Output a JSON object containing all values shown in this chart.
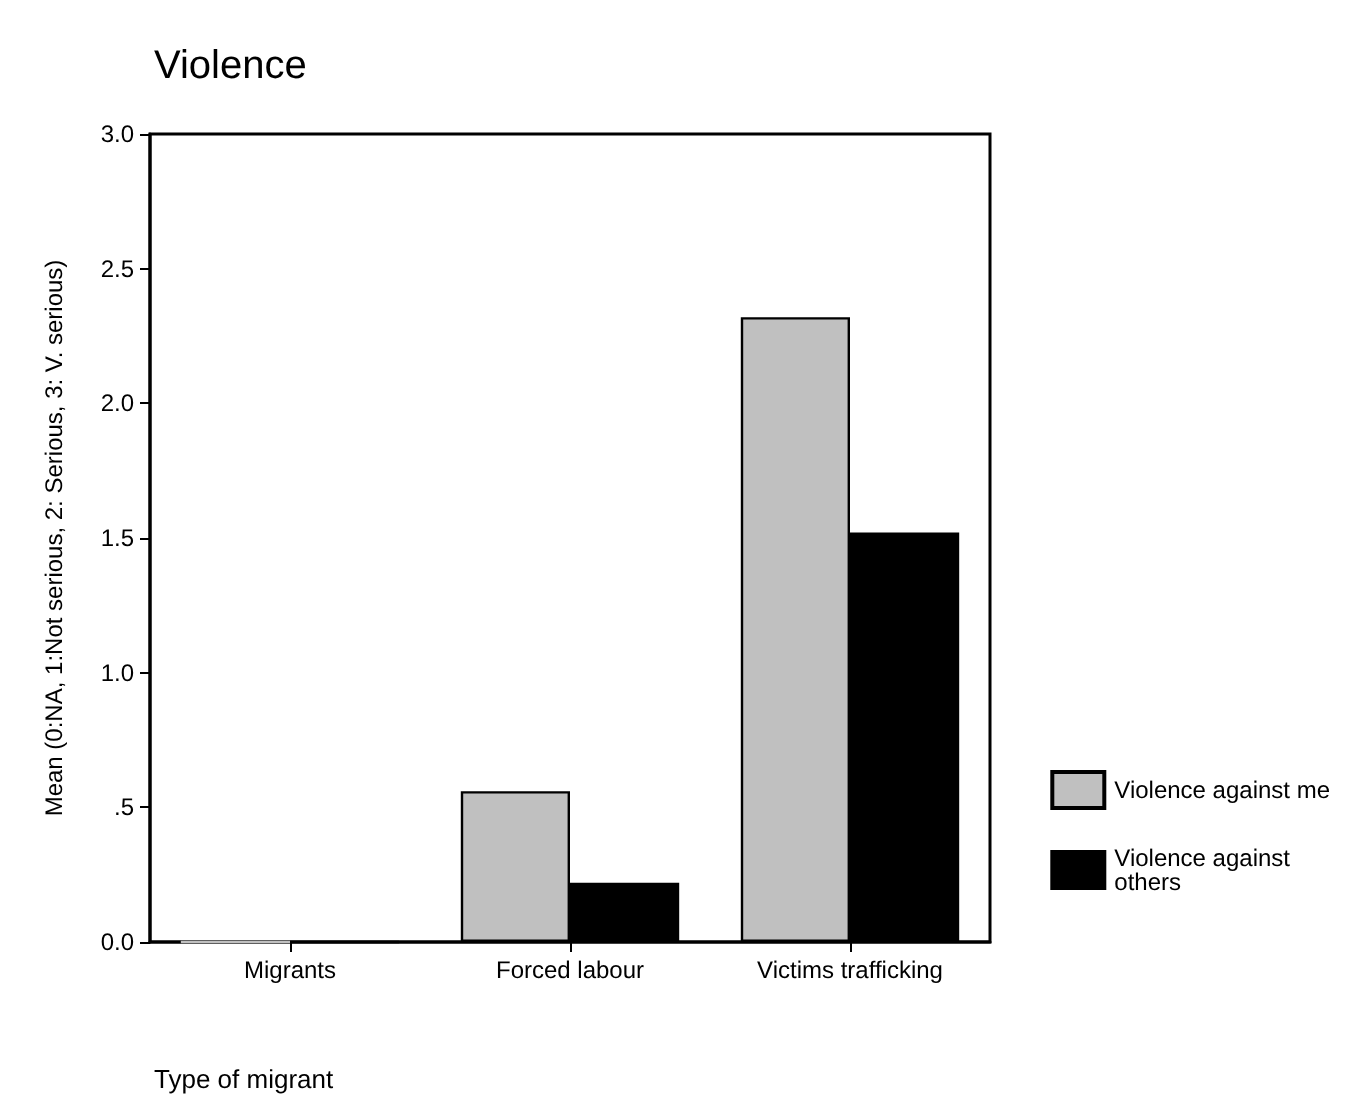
{
  "chart_data": {
    "type": "bar",
    "title": "Violence",
    "xlabel": "Type of migrant",
    "ylabel": "Mean (0:NA, 1:Not serious, 2: Serious, 3: V. serious)",
    "categories": [
      "Migrants",
      "Forced labour",
      "Victims trafficking"
    ],
    "series": [
      {
        "name": "Violence against me",
        "color": "#c0c0c0",
        "values": [
          0,
          0.56,
          2.32
        ]
      },
      {
        "name": "Violence against others",
        "color": "#000000",
        "values": [
          0,
          0.22,
          1.52
        ]
      }
    ],
    "ylim": [
      0,
      3
    ],
    "yticks": [
      {
        "value": 0,
        "label": "0.0"
      },
      {
        "value": 0.5,
        "label": ".5"
      },
      {
        "value": 1,
        "label": "1.0"
      },
      {
        "value": 1.5,
        "label": "1.5"
      },
      {
        "value": 2,
        "label": "2.0"
      },
      {
        "value": 2.5,
        "label": "2.5"
      },
      {
        "value": 3,
        "label": "3.0"
      }
    ],
    "grid": false,
    "legend": "right"
  }
}
